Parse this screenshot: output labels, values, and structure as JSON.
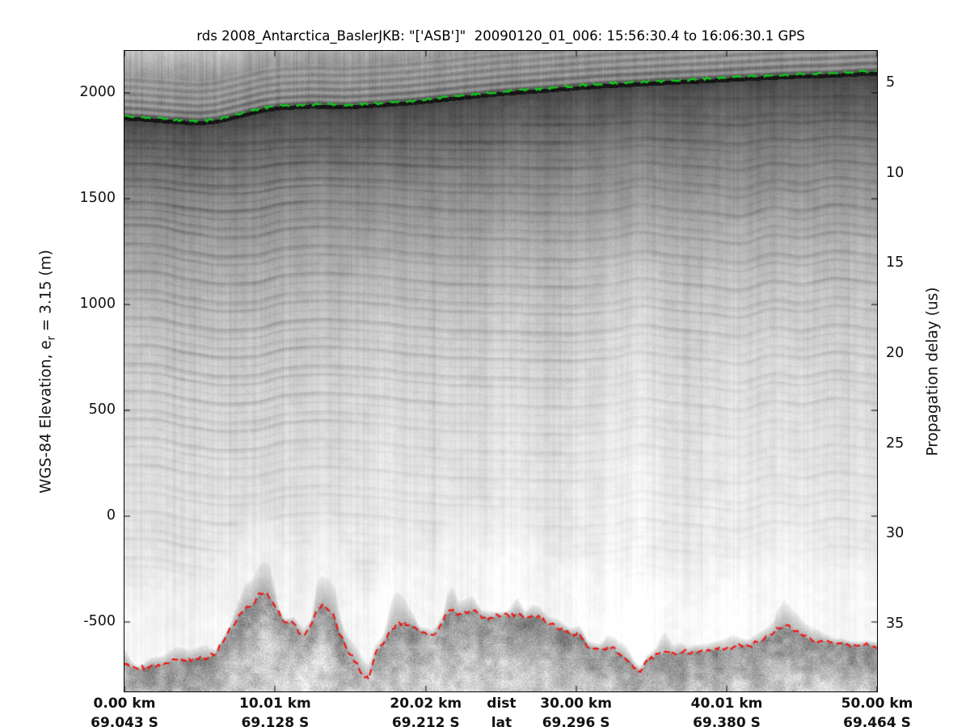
{
  "title": "rds 2008_Antarctica_BaslerJKB: \"['ASB']\"  20090120_01_006: 15:56:30.4 to 16:06:30.1 GPS",
  "left_axis": {
    "label_pre": "WGS-84 Elevation, e",
    "label_sub": "r",
    "label_post": " = 3.15 (m)",
    "unit": "m",
    "top_value": 2198,
    "bottom_value": -828,
    "ticks": [
      2000,
      1500,
      1000,
      500,
      0,
      -500
    ]
  },
  "right_axis": {
    "label": "Propagation delay (us)",
    "unit": "us",
    "top_value": 3.21,
    "bottom_value": 38.72,
    "ticks": [
      5,
      10,
      15,
      20,
      25,
      30,
      35
    ]
  },
  "bottom_axis": {
    "min_km": 0,
    "max_km": 50,
    "dist_ticks": [
      {
        "label": "0.00 km",
        "km": 0
      },
      {
        "label": "10.01 km",
        "km": 10.01
      },
      {
        "label": "20.02 km",
        "km": 20.02
      },
      {
        "label": "30.00 km",
        "km": 30.0
      },
      {
        "label": "40.01 km",
        "km": 40.01
      },
      {
        "label": "50.00 km",
        "km": 50.0
      }
    ],
    "dist_header": {
      "label": "dist",
      "km": 25.05
    },
    "lat_ticks": [
      {
        "label": "69.043 S",
        "km": 0
      },
      {
        "label": "69.128 S",
        "km": 10.01
      },
      {
        "label": "69.212 S",
        "km": 20.02
      },
      {
        "label": "69.296 S",
        "km": 30.0
      },
      {
        "label": "69.380 S",
        "km": 40.01
      },
      {
        "label": "69.464 S",
        "km": 50.0
      }
    ],
    "lat_header": {
      "label": "lat",
      "km": 25.05
    }
  },
  "chart_data": {
    "type": "heatmap",
    "subtype": "radar-echogram",
    "title": "rds 2008_Antarctica_BaslerJKB: \"['ASB']\"  20090120_01_006: 15:56:30.4 to 16:06:30.1 GPS",
    "xlabel": "dist (km) / lat (S)",
    "ylabel_left": "WGS-84 Elevation, e_r = 3.15 (m)",
    "ylabel_right": "Propagation delay (us)",
    "colormap": "grayscale (dark = strong radar return)",
    "x_range_km": [
      0,
      50
    ],
    "elevation_range_m": [
      -828,
      2198
    ],
    "delay_range_us": [
      3.21,
      38.72
    ],
    "grid": false,
    "surface_line": {
      "name": "ice surface pick",
      "color": "#12c91c",
      "style": "dashed",
      "points_km_m": [
        [
          0,
          1882
        ],
        [
          1.1,
          1878
        ],
        [
          2.5,
          1870
        ],
        [
          3.8,
          1863
        ],
        [
          4.9,
          1859
        ],
        [
          6.0,
          1866
        ],
        [
          7.0,
          1882
        ],
        [
          8.1,
          1901
        ],
        [
          9.2,
          1920
        ],
        [
          10.3,
          1931
        ],
        [
          12.4,
          1939
        ],
        [
          14.6,
          1935
        ],
        [
          16.7,
          1943
        ],
        [
          18.9,
          1954
        ],
        [
          21.0,
          1969
        ],
        [
          23.1,
          1985
        ],
        [
          25.3,
          2000
        ],
        [
          27.4,
          2011
        ],
        [
          29.6,
          2023
        ],
        [
          31.7,
          2034
        ],
        [
          33.9,
          2042
        ],
        [
          36.0,
          2050
        ],
        [
          38.2,
          2057
        ],
        [
          40.3,
          2065
        ],
        [
          42.5,
          2073
        ],
        [
          44.6,
          2080
        ],
        [
          46.8,
          2084
        ],
        [
          48.9,
          2092
        ],
        [
          50,
          2095
        ]
      ]
    },
    "bed_line": {
      "name": "ice bottom pick",
      "color": "#f01510",
      "style": "dashed",
      "points_km_m": [
        [
          0,
          -702
        ],
        [
          0.5,
          -714
        ],
        [
          0.9,
          -725
        ],
        [
          1.3,
          -714
        ],
        [
          1.8,
          -702
        ],
        [
          2.5,
          -702
        ],
        [
          2.9,
          -687
        ],
        [
          3.7,
          -679
        ],
        [
          4.4,
          -679
        ],
        [
          4.8,
          -668
        ],
        [
          5.6,
          -664
        ],
        [
          6.0,
          -653
        ],
        [
          6.4,
          -603
        ],
        [
          7.0,
          -535
        ],
        [
          7.5,
          -481
        ],
        [
          8.0,
          -435
        ],
        [
          8.5,
          -416
        ],
        [
          9.0,
          -367
        ],
        [
          9.2,
          -359
        ],
        [
          9.6,
          -378
        ],
        [
          10.1,
          -443
        ],
        [
          10.6,
          -500
        ],
        [
          11.2,
          -500
        ],
        [
          11.6,
          -550
        ],
        [
          11.9,
          -569
        ],
        [
          12.3,
          -531
        ],
        [
          12.7,
          -455
        ],
        [
          13.1,
          -416
        ],
        [
          13.5,
          -431
        ],
        [
          13.9,
          -473
        ],
        [
          14.2,
          -538
        ],
        [
          14.6,
          -595
        ],
        [
          14.9,
          -641
        ],
        [
          15.4,
          -691
        ],
        [
          15.7,
          -729
        ],
        [
          16.0,
          -759
        ],
        [
          16.2,
          -767
        ],
        [
          16.4,
          -721
        ],
        [
          16.6,
          -664
        ],
        [
          17.0,
          -615
        ],
        [
          17.4,
          -576
        ],
        [
          17.7,
          -538
        ],
        [
          18.1,
          -512
        ],
        [
          18.5,
          -500
        ],
        [
          19.0,
          -512
        ],
        [
          19.3,
          -519
        ],
        [
          19.7,
          -546
        ],
        [
          20.0,
          -550
        ],
        [
          20.4,
          -565
        ],
        [
          20.7,
          -546
        ],
        [
          21.1,
          -508
        ],
        [
          21.4,
          -462
        ],
        [
          21.8,
          -443
        ],
        [
          22.2,
          -462
        ],
        [
          22.6,
          -455
        ],
        [
          23.1,
          -443
        ],
        [
          23.7,
          -469
        ],
        [
          24.2,
          -481
        ],
        [
          24.8,
          -469
        ],
        [
          25.6,
          -469
        ],
        [
          26.1,
          -458
        ],
        [
          26.6,
          -481
        ],
        [
          27.1,
          -469
        ],
        [
          27.6,
          -481
        ],
        [
          28.1,
          -508
        ],
        [
          28.6,
          -523
        ],
        [
          29.2,
          -538
        ],
        [
          29.6,
          -550
        ],
        [
          30.2,
          -557
        ],
        [
          30.5,
          -576
        ],
        [
          30.7,
          -607
        ],
        [
          30.9,
          -618
        ],
        [
          31.5,
          -630
        ],
        [
          32.0,
          -618
        ],
        [
          32.5,
          -630
        ],
        [
          33.0,
          -653
        ],
        [
          33.5,
          -679
        ],
        [
          33.9,
          -714
        ],
        [
          34.2,
          -729
        ],
        [
          34.4,
          -721
        ],
        [
          34.7,
          -683
        ],
        [
          35.0,
          -668
        ],
        [
          35.3,
          -660
        ],
        [
          35.9,
          -645
        ],
        [
          36.4,
          -653
        ],
        [
          36.9,
          -641
        ],
        [
          37.4,
          -645
        ],
        [
          37.9,
          -637
        ],
        [
          38.5,
          -641
        ],
        [
          38.9,
          -634
        ],
        [
          39.5,
          -626
        ],
        [
          40.0,
          -630
        ],
        [
          40.5,
          -618
        ],
        [
          41.0,
          -607
        ],
        [
          41.5,
          -611
        ],
        [
          42.1,
          -595
        ],
        [
          42.5,
          -576
        ],
        [
          43.1,
          -557
        ],
        [
          43.3,
          -534
        ],
        [
          43.6,
          -523
        ],
        [
          43.8,
          -512
        ],
        [
          44.1,
          -523
        ],
        [
          44.4,
          -538
        ],
        [
          44.9,
          -557
        ],
        [
          45.4,
          -576
        ],
        [
          45.7,
          -591
        ],
        [
          46.2,
          -584
        ],
        [
          46.7,
          -595
        ],
        [
          47.2,
          -603
        ],
        [
          47.7,
          -599
        ],
        [
          48.2,
          -607
        ],
        [
          48.8,
          -611
        ],
        [
          49.3,
          -607
        ],
        [
          49.8,
          -614
        ],
        [
          50,
          -618
        ]
      ]
    },
    "echogram_texture": {
      "depth_gray_curve": [
        [
          3,
          68
        ],
        [
          12,
          82
        ],
        [
          30,
          95
        ],
        [
          60,
          115
        ],
        [
          100,
          138
        ],
        [
          150,
          158
        ],
        [
          210,
          178
        ],
        [
          280,
          196
        ],
        [
          350,
          209
        ],
        [
          430,
          218
        ],
        [
          520,
          226
        ],
        [
          650,
          232
        ],
        [
          900,
          237
        ]
      ],
      "surface_band_gray": 22,
      "firn_base_gray": 148,
      "above_surface_light_gray": 208,
      "echo_free_gray": 238,
      "bed_base_gray": 148
    }
  }
}
